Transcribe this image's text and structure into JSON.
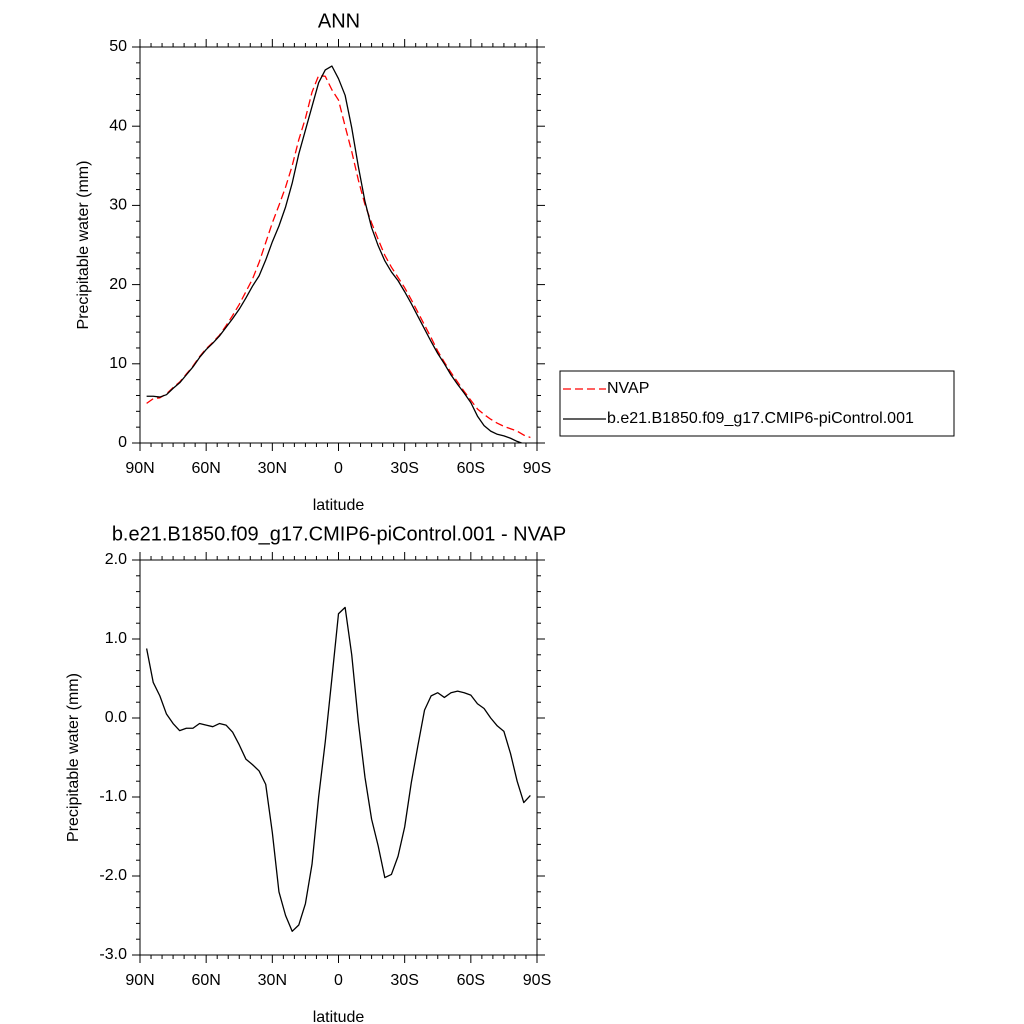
{
  "chart_data": [
    {
      "type": "line",
      "title": "ANN",
      "xlabel": "latitude",
      "ylabel": "Precipitable water (mm)",
      "xlim": [
        90,
        -90
      ],
      "ylim": [
        0,
        50
      ],
      "xtick_values": [
        90,
        60,
        30,
        0,
        -30,
        -60,
        -90
      ],
      "xtick_labels": [
        "90N",
        "60N",
        "30N",
        "0",
        "30S",
        "60S",
        "90S"
      ],
      "ytick_values": [
        0,
        10,
        20,
        30,
        40,
        50
      ],
      "ytick_labels": [
        "0",
        "10",
        "20",
        "30",
        "40",
        "50"
      ],
      "grid": false,
      "legend_position": "right",
      "series": [
        {
          "name": "NVAP",
          "color": "#ff0000",
          "dash": "dashed",
          "x": [
            87,
            84,
            81,
            78,
            75,
            72,
            69,
            66,
            63,
            60,
            57,
            54,
            51,
            48,
            45,
            42,
            39,
            36,
            33,
            30,
            27,
            24,
            21,
            18,
            15,
            12,
            9,
            6,
            3,
            0,
            -3,
            -6,
            -9,
            -12,
            -15,
            -18,
            -21,
            -24,
            -27,
            -30,
            -33,
            -36,
            -39,
            -42,
            -45,
            -48,
            -51,
            -54,
            -57,
            -60,
            -63,
            -66,
            -69,
            -72,
            -75,
            -78,
            -81,
            -84,
            -87
          ],
          "y": [
            5.0,
            5.6,
            5.7,
            6.2,
            7.0,
            7.7,
            8.7,
            9.7,
            10.9,
            11.9,
            12.7,
            13.6,
            14.8,
            16.1,
            17.5,
            19.1,
            20.7,
            22.8,
            25.3,
            27.8,
            30.0,
            32.3,
            35.0,
            38.3,
            41.0,
            44.3,
            46.4,
            46.3,
            44.6,
            43.3,
            40.0,
            36.8,
            33.2,
            30.1,
            27.8,
            25.7,
            23.7,
            22.2,
            20.9,
            19.6,
            18.1,
            16.5,
            14.9,
            13.3,
            11.6,
            10.2,
            8.9,
            7.7,
            6.5,
            5.4,
            4.3,
            3.6,
            3.0,
            2.5,
            2.1,
            1.8,
            1.5,
            1.0,
            0.7
          ]
        },
        {
          "name": "b.e21.B1850.f09_g17.CMIP6-piControl.001",
          "color": "#000000",
          "dash": "solid",
          "x": [
            87,
            84,
            81,
            78,
            75,
            72,
            69,
            66,
            63,
            60,
            57,
            54,
            51,
            48,
            45,
            42,
            39,
            36,
            33,
            30,
            27,
            24,
            21,
            18,
            15,
            12,
            9,
            6,
            3,
            0,
            -3,
            -6,
            -9,
            -12,
            -15,
            -18,
            -21,
            -24,
            -27,
            -30,
            -33,
            -36,
            -39,
            -42,
            -45,
            -48,
            -51,
            -54,
            -57,
            -60,
            -63,
            -66,
            -69,
            -72,
            -75,
            -78,
            -81,
            -84,
            -87
          ],
          "y": [
            5.9,
            5.9,
            5.8,
            6.1,
            6.9,
            7.6,
            8.6,
            9.6,
            10.8,
            11.8,
            12.6,
            13.5,
            14.6,
            15.7,
            16.9,
            18.3,
            19.8,
            21.1,
            23.1,
            25.4,
            27.4,
            29.8,
            32.8,
            36.5,
            39.5,
            42.5,
            45.5,
            47.1,
            47.6,
            46.0,
            43.9,
            39.8,
            34.9,
            30.5,
            27.2,
            24.9,
            23.0,
            21.6,
            20.5,
            19.1,
            17.6,
            16.0,
            14.4,
            12.8,
            11.3,
            10.0,
            8.6,
            7.4,
            6.3,
            5.1,
            3.4,
            2.2,
            1.5,
            1.1,
            0.9,
            0.6,
            0.2,
            -0.1,
            -0.3
          ]
        }
      ]
    },
    {
      "type": "line",
      "title": "b.e21.B1850.f09_g17.CMIP6-piControl.001 - NVAP",
      "xlabel": "latitude",
      "ylabel": "Precipitable water (mm)",
      "xlim": [
        90,
        -90
      ],
      "ylim": [
        -3,
        2
      ],
      "xtick_values": [
        90,
        60,
        30,
        0,
        -30,
        -60,
        -90
      ],
      "xtick_labels": [
        "90N",
        "60N",
        "30N",
        "0",
        "30S",
        "60S",
        "90S"
      ],
      "ytick_values": [
        -3,
        -2,
        -1,
        0,
        1,
        2
      ],
      "ytick_labels": [
        "-3.0",
        "-2.0",
        "-1.0",
        "0.0",
        "1.0",
        "2.0"
      ],
      "grid": false,
      "series": [
        {
          "color": "#000000",
          "dash": "solid",
          "x": [
            87,
            84,
            81,
            78,
            75,
            72,
            69,
            66,
            63,
            60,
            57,
            54,
            51,
            48,
            45,
            42,
            39,
            36,
            33,
            30,
            27,
            24,
            21,
            18,
            15,
            12,
            9,
            6,
            3,
            0,
            -3,
            -6,
            -9,
            -12,
            -15,
            -18,
            -21,
            -24,
            -27,
            -30,
            -33,
            -36,
            -39,
            -42,
            -45,
            -48,
            -51,
            -54,
            -57,
            -60,
            -63,
            -66,
            -69,
            -72,
            -75,
            -78,
            -81,
            -84,
            -87
          ],
          "y": [
            0.88,
            0.45,
            0.28,
            0.05,
            -0.07,
            -0.16,
            -0.13,
            -0.13,
            -0.07,
            -0.09,
            -0.11,
            -0.07,
            -0.09,
            -0.18,
            -0.34,
            -0.52,
            -0.59,
            -0.67,
            -0.84,
            -1.45,
            -2.2,
            -2.5,
            -2.7,
            -2.62,
            -2.35,
            -1.85,
            -1.0,
            -0.3,
            0.5,
            1.32,
            1.4,
            0.8,
            -0.05,
            -0.75,
            -1.28,
            -1.62,
            -2.02,
            -1.98,
            -1.75,
            -1.38,
            -0.82,
            -0.35,
            0.1,
            0.28,
            0.32,
            0.26,
            0.32,
            0.34,
            0.32,
            0.29,
            0.18,
            0.12,
            0.0,
            -0.1,
            -0.17,
            -0.45,
            -0.8,
            -1.07,
            -0.98
          ]
        }
      ]
    }
  ]
}
